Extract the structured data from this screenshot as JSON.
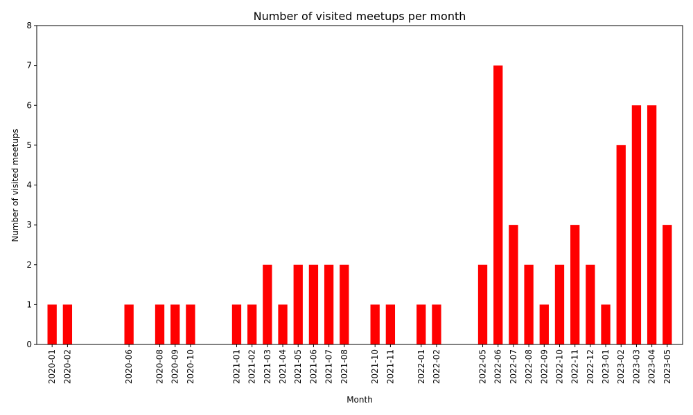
{
  "chart_data": {
    "type": "bar",
    "title": "Number of visited meetups per month",
    "xlabel": "Month",
    "ylabel": "Number of visited meetups",
    "ylim": [
      0,
      8
    ],
    "yticks": [
      0,
      1,
      2,
      3,
      4,
      5,
      6,
      7,
      8
    ],
    "bar_color": "#ff0000",
    "grid": false,
    "x_start": "2019-12",
    "x_end": "2023-06",
    "categories": [
      "2020-01",
      "2020-02",
      "2020-06",
      "2020-08",
      "2020-09",
      "2020-10",
      "2021-01",
      "2021-02",
      "2021-03",
      "2021-04",
      "2021-05",
      "2021-06",
      "2021-07",
      "2021-08",
      "2021-10",
      "2021-11",
      "2022-01",
      "2022-02",
      "2022-05",
      "2022-06",
      "2022-07",
      "2022-08",
      "2022-09",
      "2022-10",
      "2022-11",
      "2022-12",
      "2023-01",
      "2023-02",
      "2023-03",
      "2023-04",
      "2023-05"
    ],
    "values": [
      1,
      1,
      1,
      1,
      1,
      1,
      1,
      1,
      2,
      1,
      2,
      2,
      2,
      2,
      1,
      1,
      1,
      1,
      2,
      7,
      3,
      2,
      1,
      2,
      3,
      2,
      1,
      5,
      6,
      6,
      3
    ]
  }
}
